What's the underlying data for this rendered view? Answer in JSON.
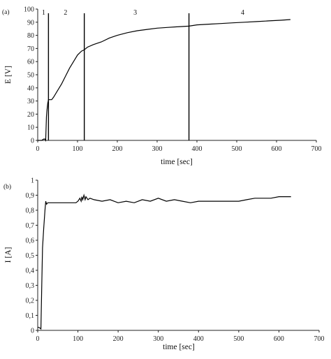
{
  "chart_data": [
    {
      "type": "line",
      "panel_label": "(a)",
      "xlabel": "time [sec]",
      "ylabel": "E [V]",
      "xlim": [
        0,
        700
      ],
      "ylim": [
        0,
        100
      ],
      "xticks": [
        "0",
        "100",
        "200",
        "300",
        "400",
        "500",
        "600",
        "700"
      ],
      "yticks": [
        "0",
        "10",
        "20",
        "30",
        "40",
        "50",
        "60",
        "70",
        "80",
        "90",
        "100"
      ],
      "region_boundaries": [
        27,
        117,
        380
      ],
      "region_labels": [
        {
          "text": "1",
          "x": 15
        },
        {
          "text": "2",
          "x": 70
        },
        {
          "text": "3",
          "x": 245
        },
        {
          "text": "4",
          "x": 515
        }
      ],
      "series": [
        {
          "x": [
            0,
            10,
            15,
            18,
            20,
            22,
            23,
            25,
            27,
            30,
            35,
            40,
            50,
            60,
            70,
            80,
            90,
            100,
            110,
            117,
            125,
            140,
            160,
            180,
            200,
            225,
            250,
            275,
            300,
            325,
            350,
            380,
            400,
            430,
            460,
            490,
            520,
            550,
            580,
            610,
            635
          ],
          "y": [
            0,
            0,
            1,
            1,
            0,
            18,
            22,
            28,
            31,
            31,
            31,
            33,
            38,
            43,
            49,
            55,
            60,
            65,
            68,
            69,
            71,
            73,
            75,
            78,
            80,
            82,
            83.5,
            84.5,
            85.5,
            86,
            86.5,
            87,
            88,
            88.5,
            89,
            89.5,
            90,
            90.5,
            91,
            91.5,
            92
          ]
        }
      ]
    },
    {
      "type": "line",
      "panel_label": "(b)",
      "xlabel": "time [sec]",
      "ylabel": "I [A]",
      "xlim": [
        0,
        700
      ],
      "ylim": [
        0,
        1.0
      ],
      "xticks": [
        "0",
        "100",
        "200",
        "300",
        "400",
        "500",
        "600",
        "700"
      ],
      "yticks": [
        "0",
        "0,1",
        "0,2",
        "0,3",
        "0,4",
        "0,5",
        "0,6",
        "0,7",
        "0,8",
        "0,9",
        "1"
      ],
      "series": [
        {
          "x": [
            0,
            3,
            8,
            10,
            12,
            15,
            18,
            20,
            22,
            25,
            30,
            40,
            60,
            80,
            95,
            100,
            105,
            108,
            110,
            112,
            115,
            118,
            120,
            125,
            130,
            140,
            160,
            180,
            200,
            220,
            240,
            260,
            280,
            300,
            320,
            340,
            360,
            380,
            400,
            420,
            440,
            460,
            480,
            500,
            520,
            540,
            560,
            580,
            600,
            620,
            630
          ],
          "y": [
            0.02,
            0.02,
            0.01,
            0.3,
            0.55,
            0.68,
            0.8,
            0.86,
            0.84,
            0.85,
            0.85,
            0.85,
            0.85,
            0.85,
            0.85,
            0.86,
            0.88,
            0.86,
            0.89,
            0.87,
            0.9,
            0.87,
            0.89,
            0.87,
            0.88,
            0.87,
            0.86,
            0.87,
            0.85,
            0.86,
            0.85,
            0.87,
            0.86,
            0.88,
            0.86,
            0.87,
            0.86,
            0.85,
            0.86,
            0.86,
            0.86,
            0.86,
            0.86,
            0.86,
            0.87,
            0.88,
            0.88,
            0.88,
            0.89,
            0.89,
            0.89
          ]
        }
      ]
    }
  ]
}
